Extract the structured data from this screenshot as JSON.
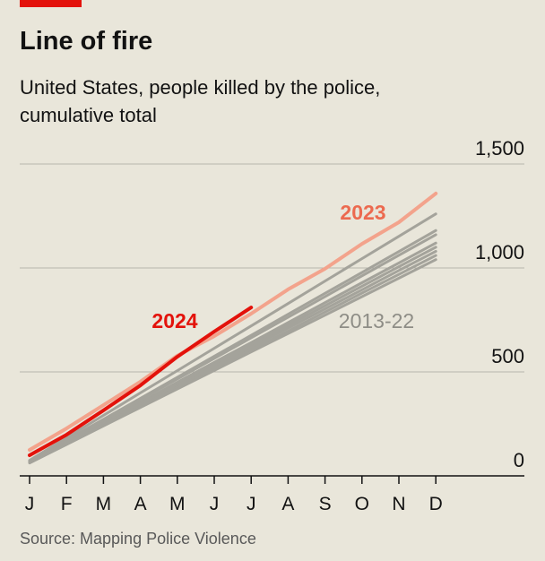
{
  "chart_data": {
    "type": "line",
    "title": "Line of fire",
    "subtitle": [
      "United States, people killed by the police,",
      "cumulative total"
    ],
    "source": "Source: Mapping Police Violence",
    "categories": [
      "J",
      "F",
      "M",
      "A",
      "M",
      "J",
      "J",
      "A",
      "S",
      "O",
      "N",
      "D"
    ],
    "ylim": [
      0,
      1500
    ],
    "yticks": [
      0,
      500,
      {
        "value": 1000,
        "label": "1,000"
      },
      {
        "value": 1500,
        "label": "1,500"
      }
    ],
    "grid": true,
    "series": [
      {
        "name": "2013-22",
        "color": "#a4a39b",
        "lines": [
          [
            75,
            183,
            291,
            399,
            506,
            614,
            721,
            829,
            937,
            1045,
            1152,
            1260
          ],
          [
            71,
            172,
            272,
            373,
            474,
            575,
            676,
            777,
            878,
            978,
            1079,
            1180
          ],
          [
            69,
            169,
            268,
            367,
            466,
            565,
            664,
            763,
            862,
            962,
            1061,
            1160
          ],
          [
            67,
            163,
            259,
            354,
            450,
            546,
            641,
            737,
            833,
            929,
            1024,
            1120
          ],
          [
            66,
            160,
            254,
            348,
            442,
            536,
            630,
            724,
            818,
            912,
            1006,
            1100
          ],
          [
            65,
            157,
            249,
            342,
            434,
            526,
            619,
            711,
            803,
            895,
            988,
            1080
          ],
          [
            63,
            154,
            245,
            335,
            426,
            516,
            607,
            697,
            788,
            879,
            969,
            1060
          ],
          [
            62,
            151,
            240,
            329,
            418,
            507,
            596,
            685,
            773,
            862,
            951,
            1040
          ]
        ]
      },
      {
        "name": "2023",
        "color": "#f3a38c",
        "values": [
          125,
          228,
          340,
          453,
          578,
          672,
          780,
          897,
          996,
          1116,
          1220,
          1358
        ]
      },
      {
        "name": "2024",
        "color": "#e3120b",
        "values": [
          99,
          198,
          315,
          435,
          573,
          694,
          810,
          null,
          null,
          null,
          null,
          null
        ]
      }
    ]
  }
}
